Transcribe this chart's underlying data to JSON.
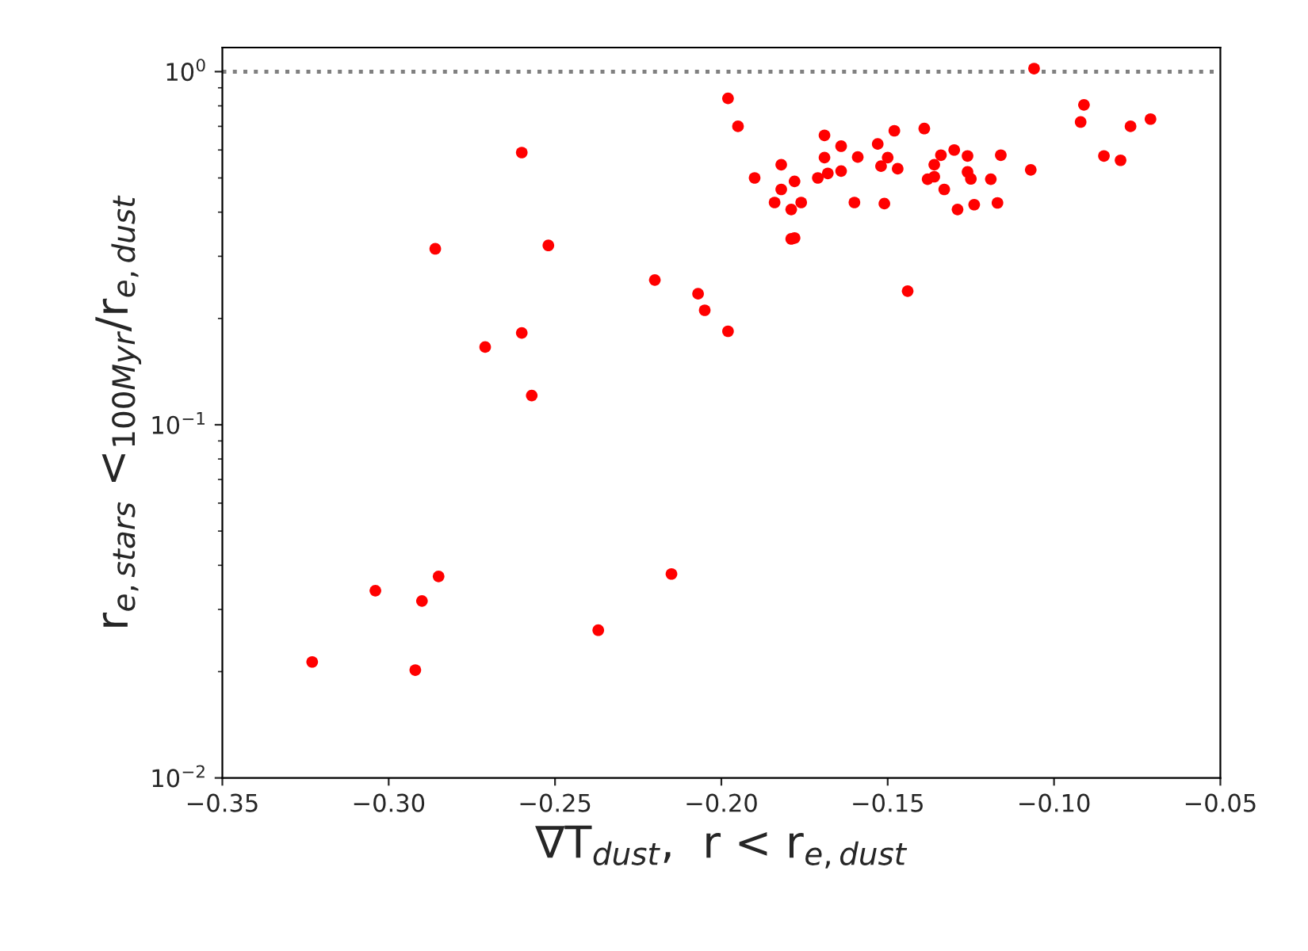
{
  "chart_data": {
    "type": "scatter",
    "xlabel": "∇T$_{dust}$,  r < r$_{e,dust}$",
    "ylabel": "r$_{e,stars}$ <$_{100Myr}$/r$_{e,dust}$",
    "log": "y",
    "marker": "circle",
    "grid": false,
    "xlim": [
      -0.35,
      -0.05
    ],
    "xticks": [
      {
        "value": -0.35,
        "label": "−0.35"
      },
      {
        "value": -0.3,
        "label": "−0.30"
      },
      {
        "value": -0.25,
        "label": "−0.25"
      },
      {
        "value": -0.2,
        "label": "−0.20"
      },
      {
        "value": -0.15,
        "label": "−0.15"
      },
      {
        "value": -0.1,
        "label": "−0.10"
      },
      {
        "value": -0.05,
        "label": "−0.05"
      }
    ],
    "ylim": [
      0.01,
      1.17
    ],
    "yticks": [
      {
        "value": 0.01,
        "label": "10$^{−2}$"
      },
      {
        "value": 0.1,
        "label": "10$^{−1}$"
      },
      {
        "value": 1,
        "label": "10$^{0}$"
      }
    ],
    "ref_lines": [
      {
        "axis": "y",
        "value": 1,
        "color": "#808080",
        "line_style": "dotted"
      }
    ],
    "series": [
      {
        "color": "#ff0000",
        "x": [
          -0.106,
          -0.198,
          -0.195,
          -0.19,
          -0.182,
          -0.182,
          -0.178,
          -0.184,
          -0.179,
          -0.176,
          -0.179,
          -0.178,
          -0.169,
          -0.164,
          -0.169,
          -0.171,
          -0.168,
          -0.164,
          -0.16,
          -0.159,
          -0.153,
          -0.15,
          -0.152,
          -0.147,
          -0.151,
          -0.148,
          -0.139,
          -0.134,
          -0.136,
          -0.138,
          -0.136,
          -0.13,
          -0.126,
          -0.126,
          -0.125,
          -0.133,
          -0.129,
          -0.124,
          -0.119,
          -0.116,
          -0.117,
          -0.107,
          -0.092,
          -0.091,
          -0.085,
          -0.08,
          -0.077,
          -0.071,
          -0.144,
          -0.207,
          -0.205,
          -0.26,
          -0.286,
          -0.252,
          -0.22,
          -0.198,
          -0.26,
          -0.271,
          -0.257,
          -0.323,
          -0.304,
          -0.29,
          -0.285,
          -0.292,
          -0.237,
          -0.215
        ],
        "values": [
          1.02,
          0.84,
          0.7,
          0.5,
          0.545,
          0.464,
          0.489,
          0.426,
          0.407,
          0.426,
          0.336,
          0.338,
          0.66,
          0.615,
          0.571,
          0.5,
          0.515,
          0.523,
          0.426,
          0.573,
          0.624,
          0.571,
          0.54,
          0.531,
          0.423,
          0.68,
          0.69,
          0.58,
          0.545,
          0.496,
          0.504,
          0.6,
          0.577,
          0.52,
          0.497,
          0.464,
          0.407,
          0.42,
          0.496,
          0.58,
          0.425,
          0.527,
          0.72,
          0.805,
          0.577,
          0.561,
          0.7,
          0.734,
          0.239,
          0.235,
          0.211,
          0.59,
          0.315,
          0.322,
          0.257,
          0.184,
          0.182,
          0.166,
          0.121,
          0.0213,
          0.0339,
          0.0317,
          0.0372,
          0.0202,
          0.0262,
          0.0378
        ]
      }
    ]
  }
}
